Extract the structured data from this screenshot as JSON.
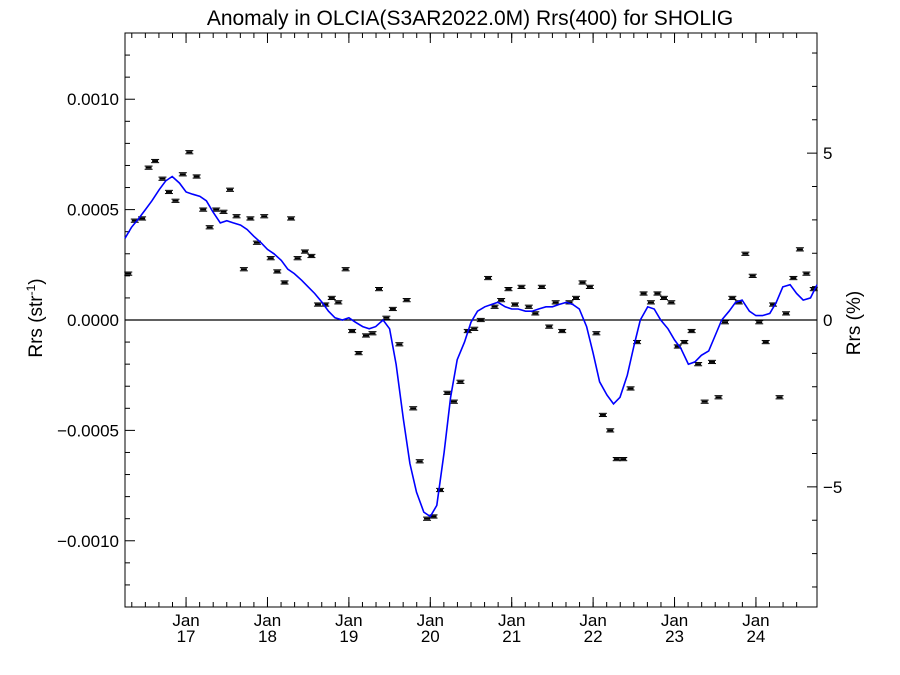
{
  "chart_data": {
    "type": "scatter",
    "title": "Anomaly in OLCIA(S3AR2022.0M) Rrs(400) for SHOLIG",
    "ylabel_left": "Rrs (str",
    "ylabel_left_exp": "-1",
    "ylabel_left_close": ")",
    "ylabel_right": "Rrs (%)",
    "xlim": [
      2016.25,
      2024.75
    ],
    "ylim": [
      -0.0013,
      0.0013
    ],
    "ylim_right": [
      -8.6,
      8.6
    ],
    "grid": false,
    "zero_line": true,
    "x_ticks": [
      {
        "x": 2017.0,
        "top": "Jan",
        "bottom": "17"
      },
      {
        "x": 2018.0,
        "top": "Jan",
        "bottom": "18"
      },
      {
        "x": 2019.0,
        "top": "Jan",
        "bottom": "19"
      },
      {
        "x": 2020.0,
        "top": "Jan",
        "bottom": "20"
      },
      {
        "x": 2021.0,
        "top": "Jan",
        "bottom": "21"
      },
      {
        "x": 2022.0,
        "top": "Jan",
        "bottom": "22"
      },
      {
        "x": 2023.0,
        "top": "Jan",
        "bottom": "23"
      },
      {
        "x": 2024.0,
        "top": "Jan",
        "bottom": "24"
      }
    ],
    "y_ticks_left": [
      {
        "v": 0.001,
        "label": "0.0010"
      },
      {
        "v": 0.0005,
        "label": "0.0005"
      },
      {
        "v": 0.0,
        "label": "0.0000"
      },
      {
        "v": -0.0005,
        "label": "−0.0005"
      },
      {
        "v": -0.001,
        "label": "−0.0010"
      }
    ],
    "y_ticks_right": [
      {
        "v": 5,
        "label": "5"
      },
      {
        "v": 0,
        "label": "0"
      },
      {
        "v": -5,
        "label": "−5"
      }
    ],
    "series": [
      {
        "kind": "points",
        "color": "#000000",
        "x": [
          2016.29,
          2016.37,
          2016.46,
          2016.54,
          2016.62,
          2016.71,
          2016.79,
          2016.87,
          2016.96,
          2017.04,
          2017.13,
          2017.21,
          2017.29,
          2017.37,
          2017.46,
          2017.54,
          2017.62,
          2017.71,
          2017.79,
          2017.87,
          2017.96,
          2018.04,
          2018.12,
          2018.21,
          2018.29,
          2018.37,
          2018.46,
          2018.54,
          2018.62,
          2018.71,
          2018.79,
          2018.87,
          2018.96,
          2019.04,
          2019.12,
          2019.21,
          2019.29,
          2019.37,
          2019.46,
          2019.54,
          2019.62,
          2019.71,
          2019.79,
          2019.87,
          2019.96,
          2020.04,
          2020.12,
          2020.21,
          2020.29,
          2020.37,
          2020.46,
          2020.54,
          2020.62,
          2020.71,
          2020.79,
          2020.87,
          2020.96,
          2021.04,
          2021.12,
          2021.21,
          2021.29,
          2021.37,
          2021.46,
          2021.54,
          2021.62,
          2021.71,
          2021.79,
          2021.87,
          2021.96,
          2022.04,
          2022.12,
          2022.21,
          2022.29,
          2022.37,
          2022.46,
          2022.54,
          2022.62,
          2022.71,
          2022.79,
          2022.87,
          2022.96,
          2023.04,
          2023.12,
          2023.21,
          2023.29,
          2023.37,
          2023.46,
          2023.54,
          2023.62,
          2023.71,
          2023.79,
          2023.87,
          2023.96,
          2024.04,
          2024.12,
          2024.21,
          2024.29,
          2024.37,
          2024.46,
          2024.54,
          2024.62,
          2024.71
        ],
        "y": [
          0.00021,
          0.00045,
          0.00046,
          0.00069,
          0.00072,
          0.00064,
          0.00058,
          0.00054,
          0.00066,
          0.00076,
          0.00065,
          0.0005,
          0.00042,
          0.0005,
          0.00049,
          0.00059,
          0.00047,
          0.00023,
          0.00046,
          0.00035,
          0.00047,
          0.00028,
          0.00022,
          0.00017,
          0.00046,
          0.00028,
          0.00031,
          0.00029,
          7e-05,
          7e-05,
          0.0001,
          8e-05,
          0.00023,
          -5e-05,
          -0.00015,
          -7e-05,
          -6e-05,
          0.00014,
          1e-05,
          5e-05,
          -0.00011,
          9e-05,
          -0.0004,
          -0.00064,
          -0.0009,
          -0.00089,
          -0.00077,
          -0.00033,
          -0.00037,
          -0.00028,
          -5e-05,
          -4e-05,
          0.0,
          0.00019,
          6e-05,
          9e-05,
          0.00014,
          7e-05,
          0.00015,
          6e-05,
          3e-05,
          0.00015,
          -3e-05,
          8e-05,
          -5e-05,
          8e-05,
          0.0001,
          0.00017,
          0.00015,
          -6e-05,
          -0.00043,
          -0.0005,
          -0.00063,
          -0.00063,
          -0.00031,
          -0.0001,
          0.00012,
          8e-05,
          0.00012,
          0.0001,
          8e-05,
          -0.00012,
          -0.0001,
          -5e-05,
          -0.0002,
          -0.00037,
          -0.00019,
          -0.00035,
          -1e-05,
          0.0001,
          8e-05,
          0.0003,
          0.0002,
          -1e-05,
          -0.0001,
          7e-05,
          -0.00035,
          3e-05,
          0.00019,
          0.00032,
          0.00021,
          0.00014
        ]
      },
      {
        "kind": "line",
        "color": "#0000ff",
        "x": [
          2016.25,
          2016.33,
          2016.42,
          2016.5,
          2016.58,
          2016.67,
          2016.75,
          2016.83,
          2016.92,
          2017.0,
          2017.08,
          2017.17,
          2017.25,
          2017.33,
          2017.42,
          2017.5,
          2017.58,
          2017.67,
          2017.75,
          2017.83,
          2017.92,
          2018.0,
          2018.08,
          2018.17,
          2018.25,
          2018.33,
          2018.42,
          2018.5,
          2018.58,
          2018.67,
          2018.75,
          2018.83,
          2018.92,
          2019.0,
          2019.08,
          2019.17,
          2019.25,
          2019.33,
          2019.42,
          2019.5,
          2019.58,
          2019.67,
          2019.75,
          2019.83,
          2019.92,
          2020.0,
          2020.08,
          2020.17,
          2020.25,
          2020.33,
          2020.42,
          2020.5,
          2020.58,
          2020.67,
          2020.75,
          2020.83,
          2020.92,
          2021.0,
          2021.08,
          2021.17,
          2021.25,
          2021.33,
          2021.42,
          2021.5,
          2021.58,
          2021.67,
          2021.75,
          2021.83,
          2021.92,
          2022.0,
          2022.08,
          2022.17,
          2022.25,
          2022.33,
          2022.42,
          2022.5,
          2022.58,
          2022.67,
          2022.75,
          2022.83,
          2022.92,
          2023.0,
          2023.08,
          2023.17,
          2023.25,
          2023.33,
          2023.42,
          2023.5,
          2023.58,
          2023.67,
          2023.75,
          2023.83,
          2023.92,
          2024.0,
          2024.08,
          2024.17,
          2024.25,
          2024.33,
          2024.42,
          2024.5,
          2024.58,
          2024.67,
          2024.75
        ],
        "y": [
          0.00037,
          0.00042,
          0.00046,
          0.0005,
          0.00054,
          0.00059,
          0.00063,
          0.00065,
          0.00062,
          0.00058,
          0.00057,
          0.00056,
          0.00054,
          0.00049,
          0.00044,
          0.00045,
          0.00044,
          0.00043,
          0.00041,
          0.00038,
          0.00035,
          0.00032,
          0.0003,
          0.00027,
          0.00023,
          0.00021,
          0.00018,
          0.00015,
          0.00012,
          8e-05,
          4e-05,
          1e-05,
          0.0,
          1e-05,
          -1e-05,
          -3e-05,
          -4e-05,
          -3e-05,
          0.0,
          -4e-05,
          -0.0002,
          -0.00045,
          -0.00065,
          -0.00078,
          -0.00087,
          -0.00089,
          -0.00084,
          -0.0006,
          -0.00035,
          -0.00018,
          -0.0001,
          -1e-05,
          4e-05,
          6e-05,
          7e-05,
          8e-05,
          6e-05,
          5e-05,
          5e-05,
          4e-05,
          4e-05,
          5e-05,
          6e-05,
          6e-05,
          7e-05,
          8e-05,
          7e-05,
          5e-05,
          -3e-05,
          -0.00015,
          -0.00028,
          -0.00034,
          -0.00038,
          -0.00035,
          -0.00025,
          -0.00012,
          0.0,
          6e-05,
          5e-05,
          0.0,
          -4e-05,
          -9e-05,
          -0.00013,
          -0.0002,
          -0.00019,
          -0.00016,
          -0.00014,
          -7e-05,
          0.0,
          4e-05,
          8e-05,
          9e-05,
          4e-05,
          2e-05,
          2e-05,
          3e-05,
          8e-05,
          0.00015,
          0.00016,
          0.00012,
          9e-05,
          0.0001,
          0.00016
        ]
      }
    ]
  }
}
